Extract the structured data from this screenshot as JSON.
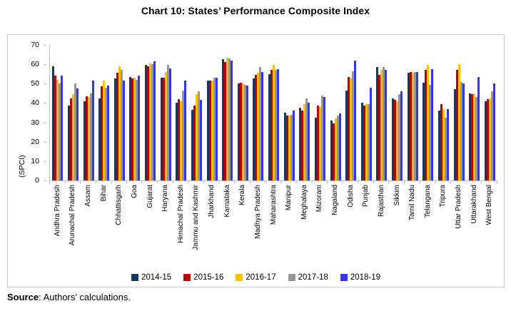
{
  "title": "Chart 10: States’ Performance Composite Index",
  "source": {
    "label": "Source",
    "text": ": Authors’ calculations."
  },
  "chart_data": {
    "type": "bar",
    "title": "Chart 10: States’ Performance Composite Index",
    "xlabel": "",
    "ylabel": "(SPCI)",
    "ylim": [
      0,
      70
    ],
    "ytick_step": 10,
    "grid": false,
    "legend_position": "bottom",
    "categories": [
      "Andhra Pradesh",
      "Arunachal Pradesh",
      "Assam",
      "Bihar",
      "Chhattisgarh",
      "Goa",
      "Gujarat",
      "Haryana",
      "Himachal Pradesh",
      "Jammu and Kashmir",
      "Jharkhand",
      "Karnataka",
      "Kerala",
      "Madhya Pradesh",
      "Maharashtra",
      "Manipur",
      "Meghalaya",
      "Mizoram",
      "Nagaland",
      "Odisha",
      "Punjab",
      "Rajasthan",
      "Sikkim",
      "Tamil Nadu",
      "Telangana",
      "Tripura",
      "Uttar Pradesh",
      "Uttarakhand",
      "West Bengal"
    ],
    "series": [
      {
        "name": "2014-15",
        "color": "#17375E",
        "values": [
          59,
          38.5,
          41,
          42.5,
          52.5,
          53.5,
          59.5,
          53,
          40,
          36.5,
          51.5,
          62.5,
          50,
          52.5,
          55,
          35,
          37.5,
          32.5,
          31,
          46.5,
          40,
          58.5,
          42.5,
          55.5,
          50.5,
          36,
          47,
          45,
          41
        ]
      },
      {
        "name": "2015-16",
        "color": "#C00000",
        "values": [
          54,
          42.5,
          43.5,
          48.5,
          55.5,
          52.5,
          59,
          53,
          42,
          38.5,
          51.5,
          61,
          50.5,
          54.5,
          57,
          33.5,
          36,
          38.5,
          29.5,
          53.5,
          38.5,
          54.5,
          41.5,
          56,
          57,
          39.5,
          57,
          44.5,
          42
        ]
      },
      {
        "name": "2016-17",
        "color": "#FFC000",
        "values": [
          52,
          44.5,
          43,
          51.5,
          59,
          53,
          60.5,
          56,
          41,
          44.5,
          51.5,
          63.5,
          50,
          55.5,
          59.5,
          33.5,
          39.5,
          38,
          32,
          53,
          39.5,
          57,
          41,
          55.5,
          59.5,
          37,
          60,
          45,
          42.5
        ]
      },
      {
        "name": "2017-18",
        "color": "#969696",
        "values": [
          50,
          50,
          45,
          48,
          57,
          52,
          60,
          59.5,
          46.5,
          46,
          53,
          63,
          49.5,
          58.5,
          57,
          34,
          42.5,
          44,
          33.5,
          56.5,
          39.5,
          58.5,
          44.5,
          56,
          49.5,
          32.5,
          51,
          43,
          46
        ]
      },
      {
        "name": "2018-19",
        "color": "#3333FF",
        "values": [
          54,
          47.5,
          51.5,
          49,
          51.5,
          54,
          61.5,
          58,
          51.5,
          41.5,
          53,
          62,
          49,
          56,
          57.5,
          36,
          40,
          43,
          34.5,
          62,
          48,
          57,
          46,
          56,
          57.5,
          37,
          50,
          53.5,
          50
        ]
      }
    ]
  }
}
